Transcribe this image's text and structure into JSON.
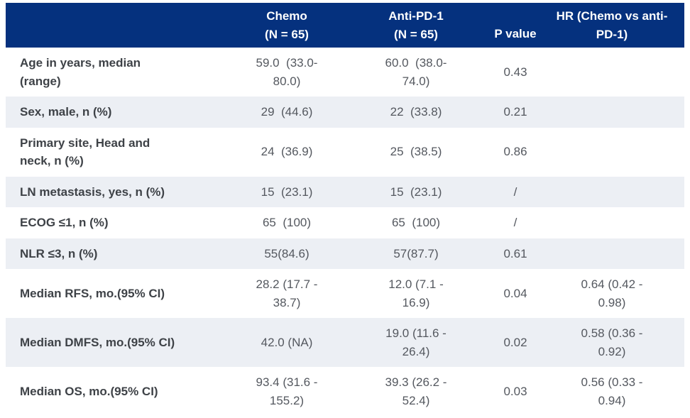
{
  "colors": {
    "header_bg": "#05317E",
    "header_text": "#FFFFFF",
    "stripe_bg": "#ECEFF4",
    "row_bg": "#FFFFFF",
    "label_text": "#3E4247",
    "value_text": "#54585F"
  },
  "table": {
    "header": {
      "col_label": "",
      "col_chemo": "Chemo\n(N = 65)",
      "col_anti_pd1": "Anti-PD-1\n(N = 65)",
      "col_p_value": "P value",
      "col_hr": "HR (Chemo vs anti-\nPD-1)"
    },
    "rows": [
      {
        "label": "Age in years, median\n(range)",
        "chemo": "59.0  (33.0-\n80.0)",
        "anti_pd1": "60.0  (38.0-\n74.0)",
        "p_value": "0.43",
        "hr": ""
      },
      {
        "label": "Sex, male, n (%)",
        "chemo": "29  (44.6)",
        "anti_pd1": "22  (33.8)",
        "p_value": "0.21",
        "hr": ""
      },
      {
        "label": "Primary site, Head and\nneck, n (%)",
        "chemo": "24  (36.9)",
        "anti_pd1": "25  (38.5)",
        "p_value": "0.86",
        "hr": ""
      },
      {
        "label": "LN metastasis, yes, n (%)",
        "chemo": "15  (23.1)",
        "anti_pd1": "15  (23.1)",
        "p_value": "/",
        "hr": ""
      },
      {
        "label": "ECOG ≤1, n (%)",
        "chemo": "65  (100)",
        "anti_pd1": "65  (100)",
        "p_value": "/",
        "hr": ""
      },
      {
        "label": "NLR ≤3, n (%)",
        "chemo": "55(84.6)",
        "anti_pd1": "57(87.7)",
        "p_value": "0.61",
        "hr": ""
      },
      {
        "label": "Median RFS, mo.(95% CI)",
        "chemo": "28.2 (17.7 -\n38.7)",
        "anti_pd1": "12.0 (7.1 -\n16.9)",
        "p_value": "0.04",
        "hr": "0.64 (0.42 -\n0.98)"
      },
      {
        "label": "Median DMFS, mo.(95% CI)",
        "chemo": "42.0 (NA)",
        "anti_pd1": "19.0 (11.6 -\n26.4)",
        "p_value": "0.02",
        "hr": "0.58 (0.36 -\n0.92)"
      },
      {
        "label": "Median OS, mo.(95% CI)",
        "chemo": "93.4 (31.6 -\n155.2)",
        "anti_pd1": "39.3 (26.2 -\n52.4)",
        "p_value": "0.03",
        "hr": "0.56 (0.33 -\n0.94)"
      }
    ]
  }
}
